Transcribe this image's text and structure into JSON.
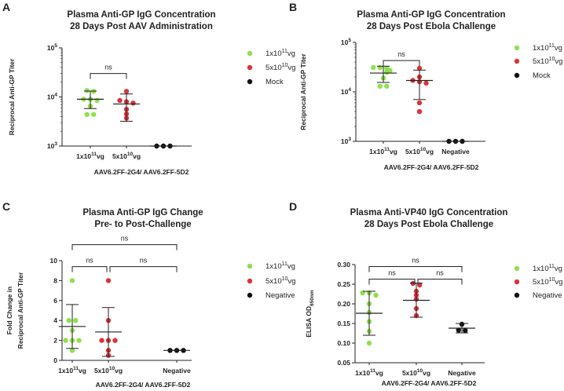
{
  "chart_data": [
    {
      "panel": "A",
      "type": "scatter",
      "title": "Plasma Anti-GP IgG Concentration",
      "subtitle": "28 Days Post AAV Administration",
      "ylabel": "Reciprocal Anti-GP Titer",
      "xlabel": "AAV6.2FF-2G4/ AAV6.2FF-5D2",
      "yscale": "log",
      "ylim": [
        1000,
        100000
      ],
      "yticks": [
        {
          "base": "10",
          "exp": "5",
          "value": 100000
        },
        {
          "base": "10",
          "exp": "4",
          "value": 10000
        },
        {
          "base": "10",
          "exp": "3",
          "value": 1000
        }
      ],
      "categories": [
        {
          "main": "1x10",
          "sup": "11",
          "suffix": "vg"
        },
        {
          "main": "5x10",
          "sup": "10",
          "suffix": "vg"
        },
        {
          "main": "",
          "sup": "",
          "suffix": ""
        }
      ],
      "legend": [
        {
          "main": "1x10",
          "sup": "11",
          "suffix": "vg",
          "color": "#8fe04e"
        },
        {
          "main": "5x10",
          "sup": "10",
          "suffix": "vg",
          "color": "#d9343a"
        },
        {
          "main": "Mock",
          "sup": "",
          "suffix": "",
          "color": "#111111"
        }
      ],
      "series": [
        {
          "name": "1x10^11 vg",
          "color": "#8fe04e",
          "points": [
            13500,
            13000,
            9000,
            9000,
            8500,
            6500,
            4400,
            4400
          ],
          "mean": 9000,
          "err_low": 5800,
          "err_high": 13200
        },
        {
          "name": "5x10^10 vg",
          "color": "#d9343a",
          "points": [
            13000,
            8500,
            8000,
            7500,
            5600,
            4500,
            3700
          ],
          "mean": 7200,
          "err_low": 3200,
          "err_high": 11500
        },
        {
          "name": "Mock",
          "color": "#111111",
          "points": [
            1000,
            1000,
            1000
          ],
          "mean": 1000,
          "err_low": 1000,
          "err_high": 1000
        }
      ],
      "comparisons": [
        {
          "from": 0,
          "to": 1,
          "label": "ns",
          "y": 30000
        }
      ]
    },
    {
      "panel": "B",
      "type": "scatter",
      "title": "Plasma Anti-GP IgG Concentration",
      "subtitle": "28 Days Post Ebola Challenge",
      "ylabel": "Reciprocal  Anti-GP Titer",
      "xlabel": "AAV6.2FF-2G4/ AAV6.2FF-5D2",
      "yscale": "log",
      "ylim": [
        1000,
        100000
      ],
      "yticks": [
        {
          "base": "10",
          "exp": "5",
          "value": 100000
        },
        {
          "base": "10",
          "exp": "4",
          "value": 10000
        },
        {
          "base": "10",
          "exp": "3",
          "value": 1000
        }
      ],
      "categories": [
        {
          "main": "1x10",
          "sup": "11",
          "suffix": "vg"
        },
        {
          "main": "5x10",
          "sup": "10",
          "suffix": "vg"
        },
        {
          "main": "Negative",
          "sup": "",
          "suffix": ""
        }
      ],
      "legend": [
        {
          "main": "1x10",
          "sup": "11",
          "suffix": "vg",
          "color": "#8fe04e"
        },
        {
          "main": "5x10",
          "sup": "10",
          "suffix": "vg",
          "color": "#d9343a"
        },
        {
          "main": "Mock",
          "sup": "",
          "suffix": "",
          "color": "#111111"
        }
      ],
      "series": [
        {
          "name": "1x10^11 vg",
          "color": "#8fe04e",
          "points": [
            31000,
            31000,
            30000,
            27000,
            25000,
            19000,
            13000,
            13000
          ],
          "mean": 24000,
          "err_low": 15500,
          "err_high": 33000
        },
        {
          "name": "5x10^10 vg",
          "color": "#d9343a",
          "points": [
            30000,
            20000,
            17000,
            16000,
            15000,
            6000,
            4000
          ],
          "mean": 17000,
          "err_low": 7000,
          "err_high": 27500
        },
        {
          "name": "Negative",
          "color": "#111111",
          "points": [
            1000,
            1000,
            1000
          ],
          "mean": 1000,
          "err_low": 1000,
          "err_high": 1000
        }
      ],
      "comparisons": [
        {
          "from": 0,
          "to": 1,
          "label": "ns",
          "y": 43000
        }
      ]
    },
    {
      "panel": "C",
      "type": "scatter",
      "title": "Plasma Anti-GP IgG Change",
      "subtitle": "Pre- to Post-Challenge",
      "ylabel": "Fold Change in",
      "ylabel2": "Reciprocal Anti-GP Titer",
      "xlabel": "AAV6.2FF-2G4/ AAV6.2FF-5D2",
      "yscale": "linear",
      "ylim": [
        0,
        10
      ],
      "yticks": [
        {
          "base": "10",
          "exp": "",
          "value": 10
        },
        {
          "base": "8",
          "exp": "",
          "value": 8
        },
        {
          "base": "6",
          "exp": "",
          "value": 6
        },
        {
          "base": "4",
          "exp": "",
          "value": 4
        },
        {
          "base": "2",
          "exp": "",
          "value": 2
        },
        {
          "base": "0",
          "exp": "",
          "value": 0
        }
      ],
      "categories": [
        {
          "main": "1x10",
          "sup": "11",
          "suffix": "vg"
        },
        {
          "main": "5x10",
          "sup": "10",
          "suffix": "vg"
        },
        {
          "main": "Negative",
          "sup": "",
          "suffix": ""
        }
      ],
      "legend": [
        {
          "main": "1x10",
          "sup": "11",
          "suffix": "vg",
          "color": "#8fe04e"
        },
        {
          "main": "5x10",
          "sup": "10",
          "suffix": "vg",
          "color": "#d9343a"
        },
        {
          "main": "Negative",
          "sup": "",
          "suffix": "",
          "color": "#111111"
        }
      ],
      "series": [
        {
          "name": "1x10^11 vg",
          "color": "#8fe04e",
          "points": [
            8.0,
            4.0,
            4.0,
            3.0,
            2.0,
            2.0,
            2.0,
            1.0
          ],
          "mean": 3.4,
          "err_low": 1.2,
          "err_high": 5.6
        },
        {
          "name": "5x10^10 vg",
          "color": "#d9343a",
          "points": [
            8.0,
            4.0,
            2.0,
            2.0,
            2.0,
            1.0,
            0.5
          ],
          "mean": 2.85,
          "err_low": 0.4,
          "err_high": 5.3
        },
        {
          "name": "Negative",
          "color": "#111111",
          "points": [
            1.0,
            1.0,
            1.0
          ],
          "mean": 1.0,
          "err_low": 1.0,
          "err_high": 1.0
        }
      ],
      "comparisons": [
        {
          "from": 0,
          "to": 2,
          "label": "ns",
          "y": 11.6
        },
        {
          "from": 0,
          "to": 1,
          "label": "ns",
          "y": 9.4
        },
        {
          "from": 1,
          "to": 2,
          "label": "ns",
          "y": 9.4
        }
      ]
    },
    {
      "panel": "D",
      "type": "scatter",
      "title": "Plasma Anti-VP40 IgG Concentration",
      "subtitle": "28 Days Post Ebola Challenge",
      "ylabel": "ELISA OD",
      "ylabel_sub": "650nm",
      "xlabel": "AAV6.2FF-2G4/ AAV6.2FF-5D2",
      "yscale": "linear",
      "ylim": [
        0.05,
        0.3
      ],
      "yticks": [
        {
          "base": "0.30",
          "exp": "",
          "value": 0.3
        },
        {
          "base": "0.25",
          "exp": "",
          "value": 0.25
        },
        {
          "base": "0.20",
          "exp": "",
          "value": 0.2
        },
        {
          "base": "0.15",
          "exp": "",
          "value": 0.15
        },
        {
          "base": "0.10",
          "exp": "",
          "value": 0.1
        },
        {
          "base": "0.05",
          "exp": "",
          "value": 0.05
        }
      ],
      "categories": [
        {
          "main": "1x10",
          "sup": "11",
          "suffix": "vg"
        },
        {
          "main": "5x10",
          "sup": "10",
          "suffix": "vg"
        },
        {
          "main": "Negative",
          "sup": "",
          "suffix": ""
        }
      ],
      "legend": [
        {
          "main": "1x10",
          "sup": "11",
          "suffix": "vg",
          "color": "#8fe04e"
        },
        {
          "main": "5x10",
          "sup": "10",
          "suffix": "vg",
          "color": "#d9343a"
        },
        {
          "main": "Negative",
          "sup": "",
          "suffix": "",
          "color": "#111111"
        }
      ],
      "series": [
        {
          "name": "1x10^11 vg",
          "color": "#8fe04e",
          "points": [
            0.228,
            0.228,
            0.222,
            0.2,
            0.178,
            0.155,
            0.13,
            0.1
          ],
          "mean": 0.176,
          "err_low": 0.12,
          "err_high": 0.232
        },
        {
          "name": "5x10^10 vg",
          "color": "#d9343a",
          "points": [
            0.252,
            0.248,
            0.232,
            0.222,
            0.212,
            0.188,
            0.17
          ],
          "mean": 0.209,
          "err_low": 0.166,
          "err_high": 0.253
        },
        {
          "name": "Negative",
          "color": "#111111",
          "points": [
            0.148,
            0.133,
            0.132
          ],
          "mean": 0.138,
          "err_low": 0.126,
          "err_high": 0.15
        }
      ],
      "comparisons": [
        {
          "from": 0,
          "to": 2,
          "label": "ns",
          "y": 0.295
        },
        {
          "from": 0,
          "to": 1,
          "label": "ns",
          "y": 0.263
        },
        {
          "from": 1,
          "to": 2,
          "label": "ns",
          "y": 0.263
        }
      ]
    }
  ]
}
